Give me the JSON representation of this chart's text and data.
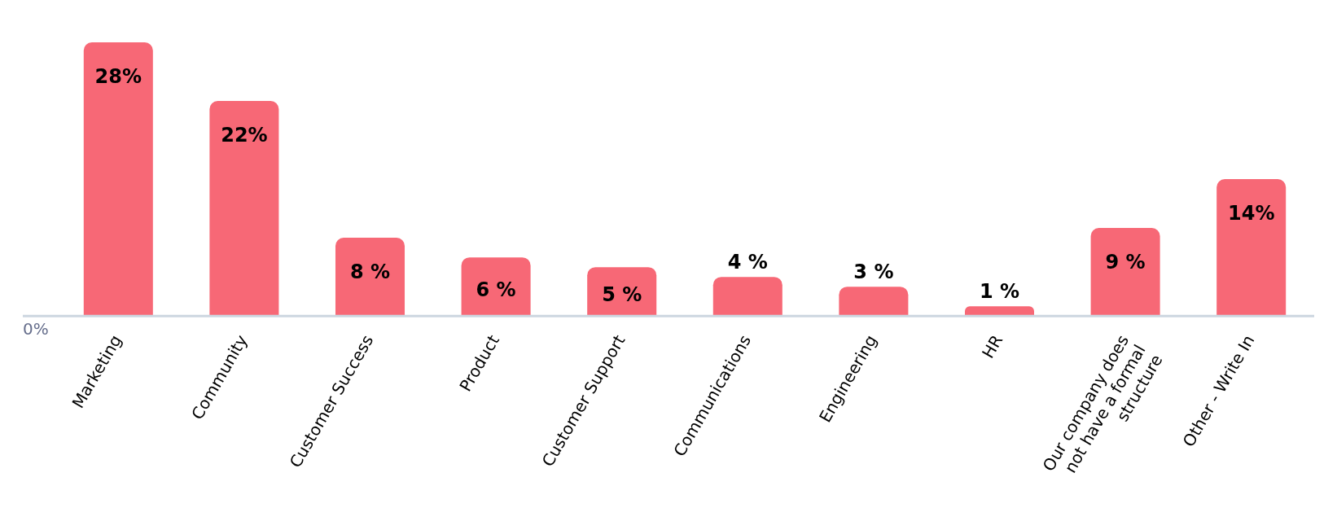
{
  "chart_data": {
    "type": "bar",
    "categories": [
      "Marketing",
      "Community",
      "Customer Success",
      "Product",
      "Customer Support",
      "Communications",
      "Engineering",
      "HR",
      "Our company does not have a formal structure",
      "Other - Write In"
    ],
    "values": [
      28,
      22,
      8,
      6,
      5,
      4,
      3,
      1,
      9,
      14
    ],
    "value_labels": [
      "28%",
      "22%",
      "8 %",
      "6 %",
      "5 %",
      "4 %",
      "3 %",
      "1 %",
      "9 %",
      "14%"
    ],
    "color": "#f76876",
    "annotations": [
      "0%"
    ],
    "grid": false,
    "legend": false
  }
}
